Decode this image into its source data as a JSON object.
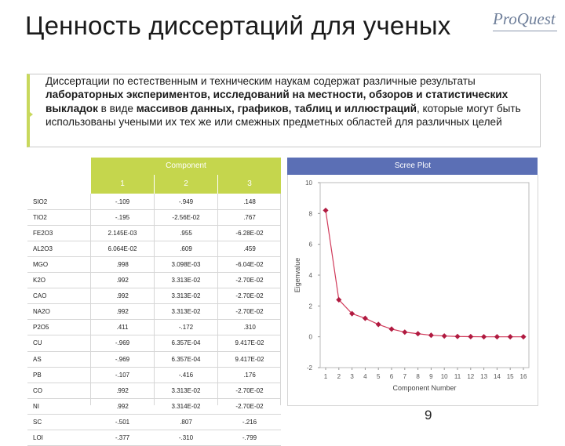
{
  "title": "Ценность диссертаций для ученых",
  "logo": "ProQuest",
  "quote_parts": [
    {
      "t": "Диссертации по естественным и техническим наукам содержат различные результаты ",
      "b": false
    },
    {
      "t": "лабораторных экспериментов, исследований на местности, обзоров и статистических выкладок",
      "b": true
    },
    {
      "t": " в виде ",
      "b": false
    },
    {
      "t": "массивов данных, графиков, таблиц и иллюстраций",
      "b": true
    },
    {
      "t": ", которые могут быть использованы учеными их тех же или смежных предметных областей для различных целей",
      "b": false
    }
  ],
  "table": {
    "header": "Component",
    "columns": [
      "1",
      "2",
      "3"
    ],
    "rows": [
      [
        "SIO2",
        "-.109",
        "-.949",
        ".148"
      ],
      [
        "TIO2",
        "-.195",
        "-2.56E-02",
        ".767"
      ],
      [
        "FE2O3",
        "2.145E-03",
        ".955",
        "-6.28E-02"
      ],
      [
        "AL2O3",
        "6.064E-02",
        ".609",
        ".459"
      ],
      [
        "MGO",
        ".998",
        "3.098E-03",
        "-6.04E-02"
      ],
      [
        "K2O",
        ".992",
        "3.313E-02",
        "-2.70E-02"
      ],
      [
        "CAO",
        ".992",
        "3.313E-02",
        "-2.70E-02"
      ],
      [
        "NA2O",
        ".992",
        "3.313E-02",
        "-2.70E-02"
      ],
      [
        "P2O5",
        ".411",
        "-.172",
        ".310"
      ],
      [
        "CU",
        "-.969",
        "6.357E-04",
        "9.417E-02"
      ],
      [
        "AS",
        "-.969",
        "6.357E-04",
        "9.417E-02"
      ],
      [
        "PB",
        "-.107",
        "-.416",
        ".176"
      ],
      [
        "CO",
        ".992",
        "3.313E-02",
        "-2.70E-02"
      ],
      [
        "NI",
        ".992",
        "3.314E-02",
        "-2.70E-02"
      ],
      [
        "SC",
        "-.501",
        ".807",
        "-.216"
      ],
      [
        "LOI",
        "-.377",
        "-.310",
        "-.799"
      ]
    ]
  },
  "scree": {
    "header": "Scree Plot",
    "chart_data": {
      "type": "line",
      "x": [
        1,
        2,
        3,
        4,
        5,
        6,
        7,
        8,
        9,
        10,
        11,
        12,
        13,
        14,
        15,
        16
      ],
      "values": [
        8.2,
        2.4,
        1.5,
        1.2,
        0.8,
        0.5,
        0.3,
        0.2,
        0.1,
        0.05,
        0.02,
        0.01,
        0.0,
        0.0,
        0.0,
        0.0
      ],
      "xlabel": "Component Number",
      "ylabel": "Eigenvalue",
      "ylim": [
        -2,
        10
      ],
      "yticks": [
        "-2",
        "0",
        "2",
        "4",
        "6",
        "8",
        "10"
      ],
      "xticks": [
        "1",
        "2",
        "3",
        "4",
        "5",
        "6",
        "7",
        "8",
        "9",
        "10",
        "11",
        "12",
        "13",
        "14",
        "15",
        "16"
      ],
      "line_color": "#d03a5a",
      "point_color": "#b01a40"
    }
  },
  "page_number": "9"
}
